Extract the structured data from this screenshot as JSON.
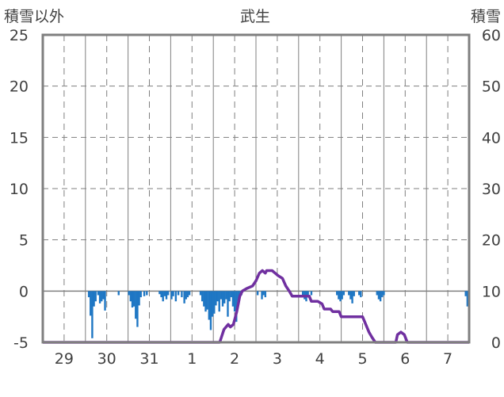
{
  "chart_data": {
    "type": "bar+line",
    "title": "武生",
    "left_axis_label": "積雪以外",
    "right_axis_label": "積雪",
    "left_ylim": [
      -5,
      25
    ],
    "right_ylim": [
      0,
      60
    ],
    "left_ticks": [
      "25",
      "20",
      "15",
      "10",
      "5",
      "0",
      "-5"
    ],
    "right_ticks": [
      "60",
      "50",
      "40",
      "30",
      "20",
      "10",
      "0"
    ],
    "x_labels": [
      "29",
      "30",
      "31",
      "1",
      "2",
      "3",
      "4",
      "5",
      "6",
      "7"
    ],
    "x_range_days": [
      0,
      10.0
    ],
    "grid": true,
    "bar_color": "#1f77c4",
    "line_color": "#7030a0",
    "bars_left_axis": [
      [
        1.08,
        -0.6
      ],
      [
        1.12,
        -2.4
      ],
      [
        1.16,
        -4.6
      ],
      [
        1.2,
        -1.5
      ],
      [
        1.24,
        -1.0
      ],
      [
        1.3,
        -0.4
      ],
      [
        1.34,
        -1.2
      ],
      [
        1.38,
        -1.0
      ],
      [
        1.42,
        -0.8
      ],
      [
        1.46,
        -1.9
      ],
      [
        1.78,
        -0.4
      ],
      [
        2.02,
        -0.4
      ],
      [
        2.06,
        -1.0
      ],
      [
        2.1,
        -1.6
      ],
      [
        2.14,
        -1.5
      ],
      [
        2.18,
        -2.7
      ],
      [
        2.22,
        -3.5
      ],
      [
        2.26,
        -1.4
      ],
      [
        2.3,
        -0.6
      ],
      [
        2.38,
        -0.5
      ],
      [
        2.44,
        -0.4
      ],
      [
        2.74,
        -0.3
      ],
      [
        2.78,
        -0.6
      ],
      [
        2.82,
        -1.0
      ],
      [
        2.86,
        -0.5
      ],
      [
        2.9,
        -0.8
      ],
      [
        2.94,
        -0.4
      ],
      [
        3.02,
        -0.8
      ],
      [
        3.06,
        -0.5
      ],
      [
        3.12,
        -1.0
      ],
      [
        3.18,
        -0.4
      ],
      [
        3.26,
        -0.6
      ],
      [
        3.32,
        -1.2
      ],
      [
        3.36,
        -0.8
      ],
      [
        3.4,
        -0.6
      ],
      [
        3.44,
        -0.4
      ],
      [
        3.7,
        -0.4
      ],
      [
        3.74,
        -1.0
      ],
      [
        3.78,
        -1.5
      ],
      [
        3.82,
        -2.0
      ],
      [
        3.86,
        -1.8
      ],
      [
        3.9,
        -2.8
      ],
      [
        3.94,
        -3.8
      ],
      [
        3.98,
        -2.5
      ],
      [
        4.02,
        -2.2
      ],
      [
        4.06,
        -1.4
      ],
      [
        4.1,
        -1.0
      ],
      [
        4.14,
        -2.0
      ],
      [
        4.18,
        -0.8
      ],
      [
        4.22,
        -1.5
      ],
      [
        4.26,
        -1.2
      ],
      [
        4.3,
        -0.8
      ],
      [
        4.34,
        -2.5
      ],
      [
        4.38,
        -1.0
      ],
      [
        4.42,
        -0.6
      ],
      [
        4.46,
        -1.5
      ],
      [
        4.5,
        -2.0
      ],
      [
        4.54,
        -3.0
      ],
      [
        4.58,
        -1.0
      ],
      [
        4.62,
        -0.6
      ],
      [
        4.66,
        -0.4
      ],
      [
        5.04,
        -0.4
      ],
      [
        5.14,
        -0.8
      ],
      [
        5.18,
        -0.4
      ],
      [
        5.22,
        -0.6
      ],
      [
        6.1,
        -0.4
      ],
      [
        6.14,
        -0.8
      ],
      [
        6.18,
        -1.0
      ],
      [
        6.22,
        -0.6
      ],
      [
        6.3,
        -0.4
      ],
      [
        6.9,
        -0.4
      ],
      [
        6.94,
        -0.8
      ],
      [
        6.98,
        -1.0
      ],
      [
        7.02,
        -0.8
      ],
      [
        7.06,
        -0.4
      ],
      [
        7.18,
        -0.4
      ],
      [
        7.22,
        -0.8
      ],
      [
        7.26,
        -1.2
      ],
      [
        7.3,
        -0.5
      ],
      [
        7.42,
        -0.4
      ],
      [
        7.46,
        -0.6
      ],
      [
        7.84,
        -0.4
      ],
      [
        7.88,
        -0.8
      ],
      [
        7.92,
        -1.0
      ],
      [
        7.96,
        -0.6
      ],
      [
        8.0,
        -0.4
      ],
      [
        9.92,
        -0.5
      ],
      [
        9.96,
        -1.5
      ]
    ],
    "line_right_axis": [
      [
        0.0,
        0.0
      ],
      [
        4.15,
        0.0
      ],
      [
        4.25,
        2.5
      ],
      [
        4.35,
        3.5
      ],
      [
        4.4,
        3.0
      ],
      [
        4.47,
        3.5
      ],
      [
        4.55,
        6.0
      ],
      [
        4.62,
        9.0
      ],
      [
        4.68,
        10.0
      ],
      [
        4.78,
        10.5
      ],
      [
        4.92,
        11.0
      ],
      [
        5.0,
        12.0
      ],
      [
        5.08,
        13.5
      ],
      [
        5.15,
        14.0
      ],
      [
        5.22,
        13.5
      ],
      [
        5.25,
        14.0
      ],
      [
        5.38,
        14.0
      ],
      [
        5.45,
        13.5
      ],
      [
        5.52,
        13.0
      ],
      [
        5.62,
        12.5
      ],
      [
        5.7,
        11.0
      ],
      [
        5.78,
        10.0
      ],
      [
        5.85,
        9.0
      ],
      [
        6.25,
        9.0
      ],
      [
        6.3,
        8.0
      ],
      [
        6.45,
        8.0
      ],
      [
        6.55,
        7.5
      ],
      [
        6.6,
        6.5
      ],
      [
        6.75,
        6.5
      ],
      [
        6.8,
        6.0
      ],
      [
        6.95,
        6.0
      ],
      [
        7.0,
        5.0
      ],
      [
        7.5,
        5.0
      ],
      [
        7.55,
        4.0
      ],
      [
        7.6,
        3.0
      ],
      [
        7.65,
        2.0
      ],
      [
        7.72,
        1.0
      ],
      [
        7.8,
        0.0
      ],
      [
        8.28,
        0.0
      ],
      [
        8.32,
        1.5
      ],
      [
        8.4,
        2.0
      ],
      [
        8.48,
        1.5
      ],
      [
        8.55,
        0.0
      ],
      [
        10.0,
        0.0
      ]
    ]
  }
}
